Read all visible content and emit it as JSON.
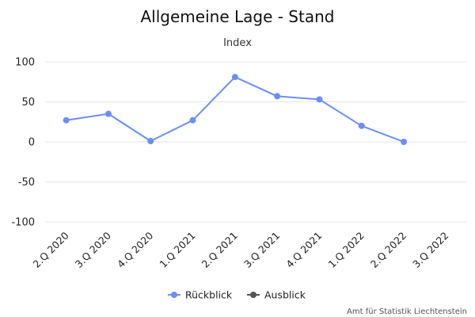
{
  "chart_data": {
    "type": "line",
    "title": "Allgemeine Lage - Stand",
    "subtitle": "Index",
    "categories": [
      "2.Q 2020",
      "3.Q 2020",
      "4.Q 2020",
      "1.Q 2021",
      "2.Q 2021",
      "3.Q 2021",
      "4.Q 2021",
      "1.Q 2022",
      "2.Q 2022",
      "3.Q 2022"
    ],
    "yticks": [
      100,
      50,
      0,
      -50,
      -100
    ],
    "ylim": [
      -100,
      100
    ],
    "grid": true,
    "legend_position": "bottom-center",
    "series": [
      {
        "name": "Rückblick",
        "color": "#6b8ff2",
        "values": [
          27,
          35,
          1,
          27,
          81,
          57,
          53,
          20,
          0,
          null
        ]
      },
      {
        "name": "Ausblick",
        "color": "#555555",
        "values": [
          null,
          null,
          null,
          null,
          null,
          null,
          null,
          null,
          null,
          null
        ]
      }
    ],
    "credits": "Amt für Statistik Liechtenstein"
  }
}
